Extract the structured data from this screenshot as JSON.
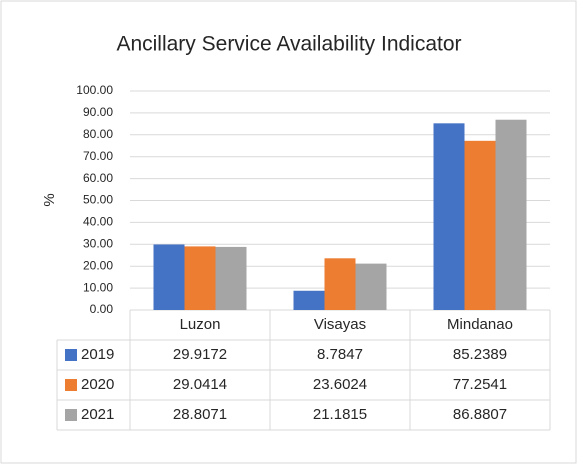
{
  "chart_data": {
    "type": "bar",
    "title": "Ancillary Service Availability Indicator",
    "y_label": "%",
    "categories": [
      "Luzon",
      "Visayas",
      "Mindanao"
    ],
    "series": [
      {
        "name": "2019",
        "color": "#4472c4",
        "values": [
          29.9172,
          8.7847,
          85.2389
        ]
      },
      {
        "name": "2020",
        "color": "#ed7d31",
        "values": [
          29.0414,
          23.6024,
          77.2541
        ]
      },
      {
        "name": "2021",
        "color": "#a5a5a5",
        "values": [
          28.8071,
          21.1815,
          86.8807
        ]
      }
    ],
    "ylim": [
      0,
      100
    ],
    "yticks": [
      {
        "value": 0,
        "label": "0.00"
      },
      {
        "value": 10,
        "label": "10.00"
      },
      {
        "value": 20,
        "label": "20.00"
      },
      {
        "value": 30,
        "label": "30.00"
      },
      {
        "value": 40,
        "label": "40.00"
      },
      {
        "value": 50,
        "label": "50.00"
      },
      {
        "value": 60,
        "label": "60.00"
      },
      {
        "value": 70,
        "label": "70.00"
      },
      {
        "value": 80,
        "label": "80.00"
      },
      {
        "value": 90,
        "label": "90.00"
      },
      {
        "value": 100,
        "label": "100.00"
      }
    ],
    "grid": true,
    "data_table": true
  }
}
